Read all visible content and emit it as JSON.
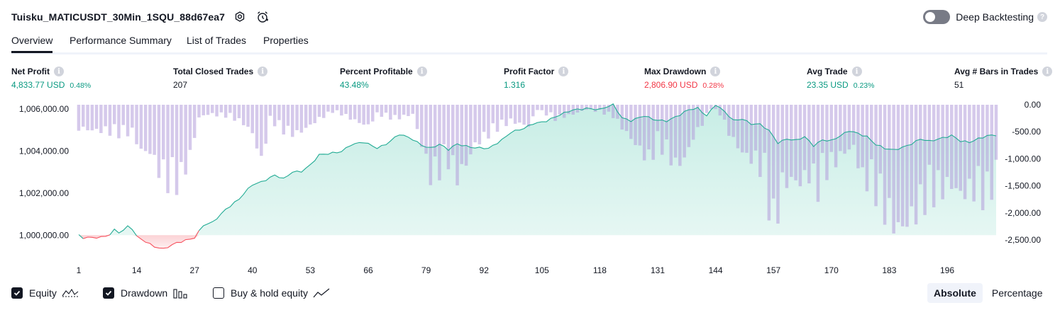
{
  "header": {
    "title": "Tuisku_MATICUSDT_30Min_1SQU_88d67ea7",
    "icons": [
      "settings-icon",
      "alarm-add-icon"
    ]
  },
  "deep_backtesting": {
    "label": "Deep Backtesting",
    "enabled": false,
    "help": "?"
  },
  "tabs": [
    {
      "label": "Overview",
      "active": true
    },
    {
      "label": "Performance Summary",
      "active": false
    },
    {
      "label": "List of Trades",
      "active": false
    },
    {
      "label": "Properties",
      "active": false
    }
  ],
  "metrics": {
    "net_profit": {
      "label": "Net Profit",
      "value": "4,833.77 USD",
      "pct": "0.48%"
    },
    "total_closed_trades": {
      "label": "Total Closed Trades",
      "value": "207"
    },
    "percent_profitable": {
      "label": "Percent Profitable",
      "value": "43.48%"
    },
    "profit_factor": {
      "label": "Profit Factor",
      "value": "1.316"
    },
    "max_drawdown": {
      "label": "Max Drawdown",
      "value": "2,806.90 USD",
      "pct": "0.28%"
    },
    "avg_trade": {
      "label": "Avg Trade",
      "value": "23.35 USD",
      "pct": "0.23%"
    },
    "avg_bars": {
      "label": "Avg # Bars in Trades",
      "value": "51"
    },
    "info_glyph": "i"
  },
  "chart_data": {
    "type": "area",
    "x_ticks": [
      "1",
      "14",
      "27",
      "40",
      "53",
      "66",
      "79",
      "92",
      "105",
      "118",
      "131",
      "144",
      "157",
      "170",
      "183",
      "196"
    ],
    "left_axis": {
      "ticks": [
        "1,006,000.00",
        "1,004,000.00",
        "1,002,000.00",
        "1,000,000.00"
      ],
      "tick_values": [
        1006000,
        1004000,
        1002000,
        1000000
      ],
      "range": [
        999000,
        1006200
      ]
    },
    "right_axis": {
      "ticks": [
        "0.00",
        "-500.00",
        "-1,000.00",
        "-1,500.00",
        "-2,000.00",
        "-2,500.00"
      ],
      "tick_values": [
        0,
        -500,
        -1000,
        -1500,
        -2000,
        -2500
      ],
      "range": [
        -2800,
        0
      ]
    },
    "baseline": 1000000,
    "x_range": [
      1,
      207
    ],
    "equity_anchors": [
      [
        1,
        999980
      ],
      [
        2,
        999850
      ],
      [
        4,
        999880
      ],
      [
        6,
        999920
      ],
      [
        8,
        1000050
      ],
      [
        9,
        1000250
      ],
      [
        10,
        1000120
      ],
      [
        11,
        1000200
      ],
      [
        12,
        1000400
      ],
      [
        13,
        1000300
      ],
      [
        14,
        999950
      ],
      [
        16,
        999720
      ],
      [
        18,
        999450
      ],
      [
        20,
        999320
      ],
      [
        21,
        999420
      ],
      [
        23,
        999650
      ],
      [
        25,
        999780
      ],
      [
        27,
        999880
      ],
      [
        29,
        1000450
      ],
      [
        31,
        1000600
      ],
      [
        34,
        1001250
      ],
      [
        37,
        1001700
      ],
      [
        40,
        1002400
      ],
      [
        42,
        1002550
      ],
      [
        45,
        1002850
      ],
      [
        47,
        1002650
      ],
      [
        49,
        1003000
      ],
      [
        51,
        1003050
      ],
      [
        53,
        1003350
      ],
      [
        55,
        1003800
      ],
      [
        57,
        1003850
      ],
      [
        60,
        1004000
      ],
      [
        62,
        1004300
      ],
      [
        65,
        1004400
      ],
      [
        68,
        1004150
      ],
      [
        70,
        1004350
      ],
      [
        73,
        1004780
      ],
      [
        76,
        1004550
      ],
      [
        78,
        1004300
      ],
      [
        80,
        1004150
      ],
      [
        82,
        1004300
      ],
      [
        84,
        1004050
      ],
      [
        86,
        1004350
      ],
      [
        88,
        1004250
      ],
      [
        90,
        1004150
      ],
      [
        93,
        1004100
      ],
      [
        96,
        1004550
      ],
      [
        98,
        1004900
      ],
      [
        101,
        1005050
      ],
      [
        103,
        1005300
      ],
      [
        106,
        1005450
      ],
      [
        109,
        1005700
      ],
      [
        112,
        1005950
      ],
      [
        115,
        1006050
      ],
      [
        118,
        1005950
      ],
      [
        121,
        1006200
      ],
      [
        123,
        1005600
      ],
      [
        125,
        1005450
      ],
      [
        128,
        1005650
      ],
      [
        130,
        1005500
      ],
      [
        133,
        1005450
      ],
      [
        136,
        1005700
      ],
      [
        138,
        1005950
      ],
      [
        140,
        1006050
      ],
      [
        142,
        1005700
      ],
      [
        144,
        1006200
      ],
      [
        146,
        1005850
      ],
      [
        148,
        1005450
      ],
      [
        150,
        1005550
      ],
      [
        152,
        1005300
      ],
      [
        154,
        1005250
      ],
      [
        156,
        1004950
      ],
      [
        158,
        1004400
      ],
      [
        160,
        1004600
      ],
      [
        162,
        1004500
      ],
      [
        164,
        1004650
      ],
      [
        166,
        1004250
      ],
      [
        168,
        1004550
      ],
      [
        170,
        1004500
      ],
      [
        172,
        1004700
      ],
      [
        174,
        1004950
      ],
      [
        176,
        1004850
      ],
      [
        178,
        1004700
      ],
      [
        180,
        1004300
      ],
      [
        182,
        1004100
      ],
      [
        184,
        1004050
      ],
      [
        186,
        1004200
      ],
      [
        188,
        1004350
      ],
      [
        190,
        1004550
      ],
      [
        192,
        1004450
      ],
      [
        195,
        1004650
      ],
      [
        197,
        1004750
      ],
      [
        199,
        1004450
      ],
      [
        201,
        1004400
      ],
      [
        203,
        1004600
      ],
      [
        205,
        1004750
      ],
      [
        207,
        1004750
      ]
    ],
    "drawdown_anchors": [
      [
        1,
        -500
      ],
      [
        4,
        -540
      ],
      [
        7,
        -560
      ],
      [
        10,
        -620
      ],
      [
        13,
        -580
      ],
      [
        15,
        -980
      ],
      [
        17,
        -1000
      ],
      [
        19,
        -1400
      ],
      [
        20,
        -1520
      ],
      [
        22,
        -1760
      ],
      [
        24,
        -1590
      ],
      [
        26,
        -1080
      ],
      [
        28,
        -270
      ],
      [
        30,
        -200
      ],
      [
        35,
        -250
      ],
      [
        38,
        -400
      ],
      [
        40,
        -600
      ],
      [
        42,
        -1200
      ],
      [
        44,
        -300
      ],
      [
        46,
        -500
      ],
      [
        48,
        -600
      ],
      [
        50,
        -620
      ],
      [
        52,
        -500
      ],
      [
        55,
        -300
      ],
      [
        58,
        -150
      ],
      [
        60,
        -200
      ],
      [
        64,
        -380
      ],
      [
        66,
        -450
      ],
      [
        68,
        -200
      ],
      [
        72,
        -300
      ],
      [
        76,
        -200
      ],
      [
        78,
        -850
      ],
      [
        80,
        -1530
      ],
      [
        82,
        -1400
      ],
      [
        84,
        -1200
      ],
      [
        86,
        -1550
      ],
      [
        88,
        -1250
      ],
      [
        90,
        -850
      ],
      [
        92,
        -700
      ],
      [
        95,
        -500
      ],
      [
        98,
        -350
      ],
      [
        102,
        -450
      ],
      [
        104,
        -100
      ],
      [
        108,
        -300
      ],
      [
        112,
        -200
      ],
      [
        115,
        -100
      ],
      [
        118,
        -150
      ],
      [
        121,
        -250
      ],
      [
        124,
        -600
      ],
      [
        127,
        -950
      ],
      [
        129,
        -1200
      ],
      [
        131,
        -850
      ],
      [
        133,
        -1000
      ],
      [
        135,
        -1300
      ],
      [
        137,
        -1150
      ],
      [
        139,
        -700
      ],
      [
        141,
        -400
      ],
      [
        143,
        -80
      ],
      [
        145,
        -200
      ],
      [
        147,
        -600
      ],
      [
        149,
        -900
      ],
      [
        151,
        -1100
      ],
      [
        153,
        -1200
      ],
      [
        155,
        -1500
      ],
      [
        157,
        -2780
      ],
      [
        159,
        -1700
      ],
      [
        161,
        -1600
      ],
      [
        163,
        -1650
      ],
      [
        165,
        -1500
      ],
      [
        167,
        -1800
      ],
      [
        169,
        -1400
      ],
      [
        171,
        -1200
      ],
      [
        173,
        -1000
      ],
      [
        175,
        -900
      ],
      [
        177,
        -1600
      ],
      [
        179,
        -1650
      ],
      [
        181,
        -2100
      ],
      [
        183,
        -2400
      ],
      [
        185,
        -2650
      ],
      [
        187,
        -2500
      ],
      [
        189,
        -2300
      ],
      [
        191,
        -2050
      ],
      [
        193,
        -1900
      ],
      [
        195,
        -1800
      ],
      [
        197,
        -1700
      ],
      [
        199,
        -1900
      ],
      [
        201,
        -1850
      ],
      [
        203,
        -1800
      ],
      [
        205,
        -2100
      ],
      [
        207,
        -1450
      ]
    ],
    "colors": {
      "equity_line": "#22ab94",
      "equity_fill": "#c7ede5",
      "loss_line": "#f7525f",
      "loss_fill": "#fbd0d3",
      "drawdown_bar": "#b39ddb",
      "drawdown_alpha": 0.55
    }
  },
  "legend": {
    "equity": {
      "label": "Equity",
      "checked": true,
      "icon": "equity-line-icon"
    },
    "drawdown": {
      "label": "Drawdown",
      "checked": true,
      "icon": "bar-chart-icon"
    },
    "buy_hold": {
      "label": "Buy & hold equity",
      "checked": false,
      "icon": "line-trend-icon"
    }
  },
  "view_mode": {
    "options": [
      "Absolute",
      "Percentage"
    ],
    "selected": "Absolute"
  }
}
